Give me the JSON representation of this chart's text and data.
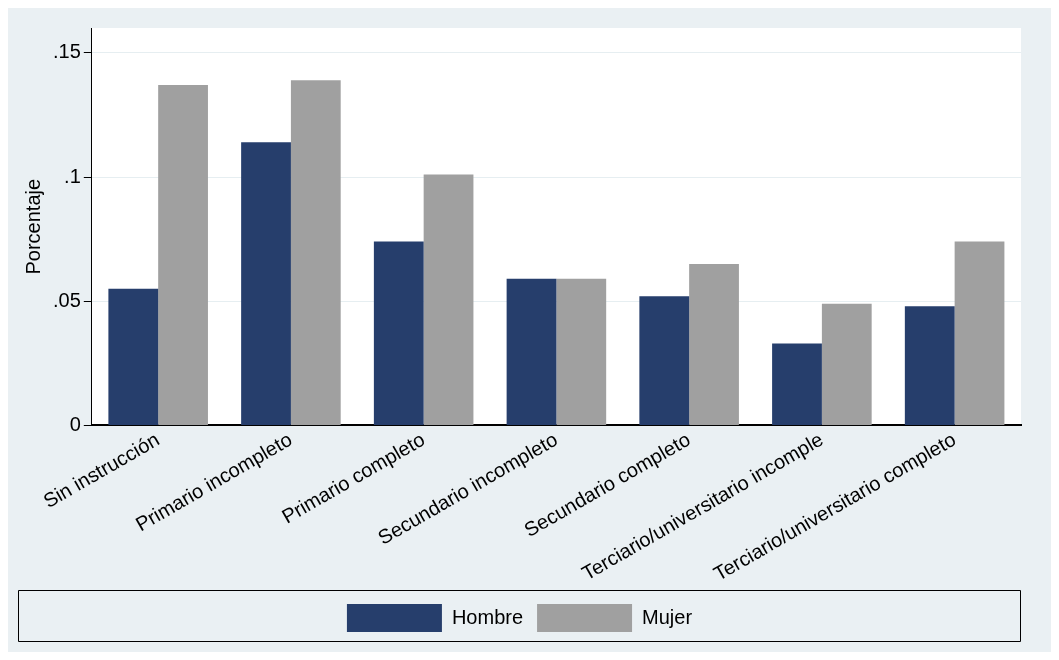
{
  "chart_data": {
    "type": "bar",
    "ylabel": "Porcentaje",
    "categories": [
      "Sin instrucción",
      "Primario incompleto",
      "Primario completo",
      "Secundario incompleto",
      "Secundario completo",
      "Terciario/universitario incomple",
      "Terciario/universitario completo"
    ],
    "series": [
      {
        "name": "Hombre",
        "color": "#263e6c",
        "values": [
          0.055,
          0.114,
          0.074,
          0.059,
          0.052,
          0.033,
          0.048
        ]
      },
      {
        "name": "Mujer",
        "color": "#a0a0a0",
        "values": [
          0.137,
          0.139,
          0.101,
          0.059,
          0.065,
          0.049,
          0.074
        ]
      }
    ],
    "ylim": [
      0,
      0.16
    ],
    "yticks": [
      {
        "value": 0,
        "label": "0"
      },
      {
        "value": 0.05,
        "label": ".05"
      },
      {
        "value": 0.1,
        "label": ".1"
      },
      {
        "value": 0.15,
        "label": ".15"
      }
    ],
    "grid": "y",
    "legend": "bottom"
  }
}
